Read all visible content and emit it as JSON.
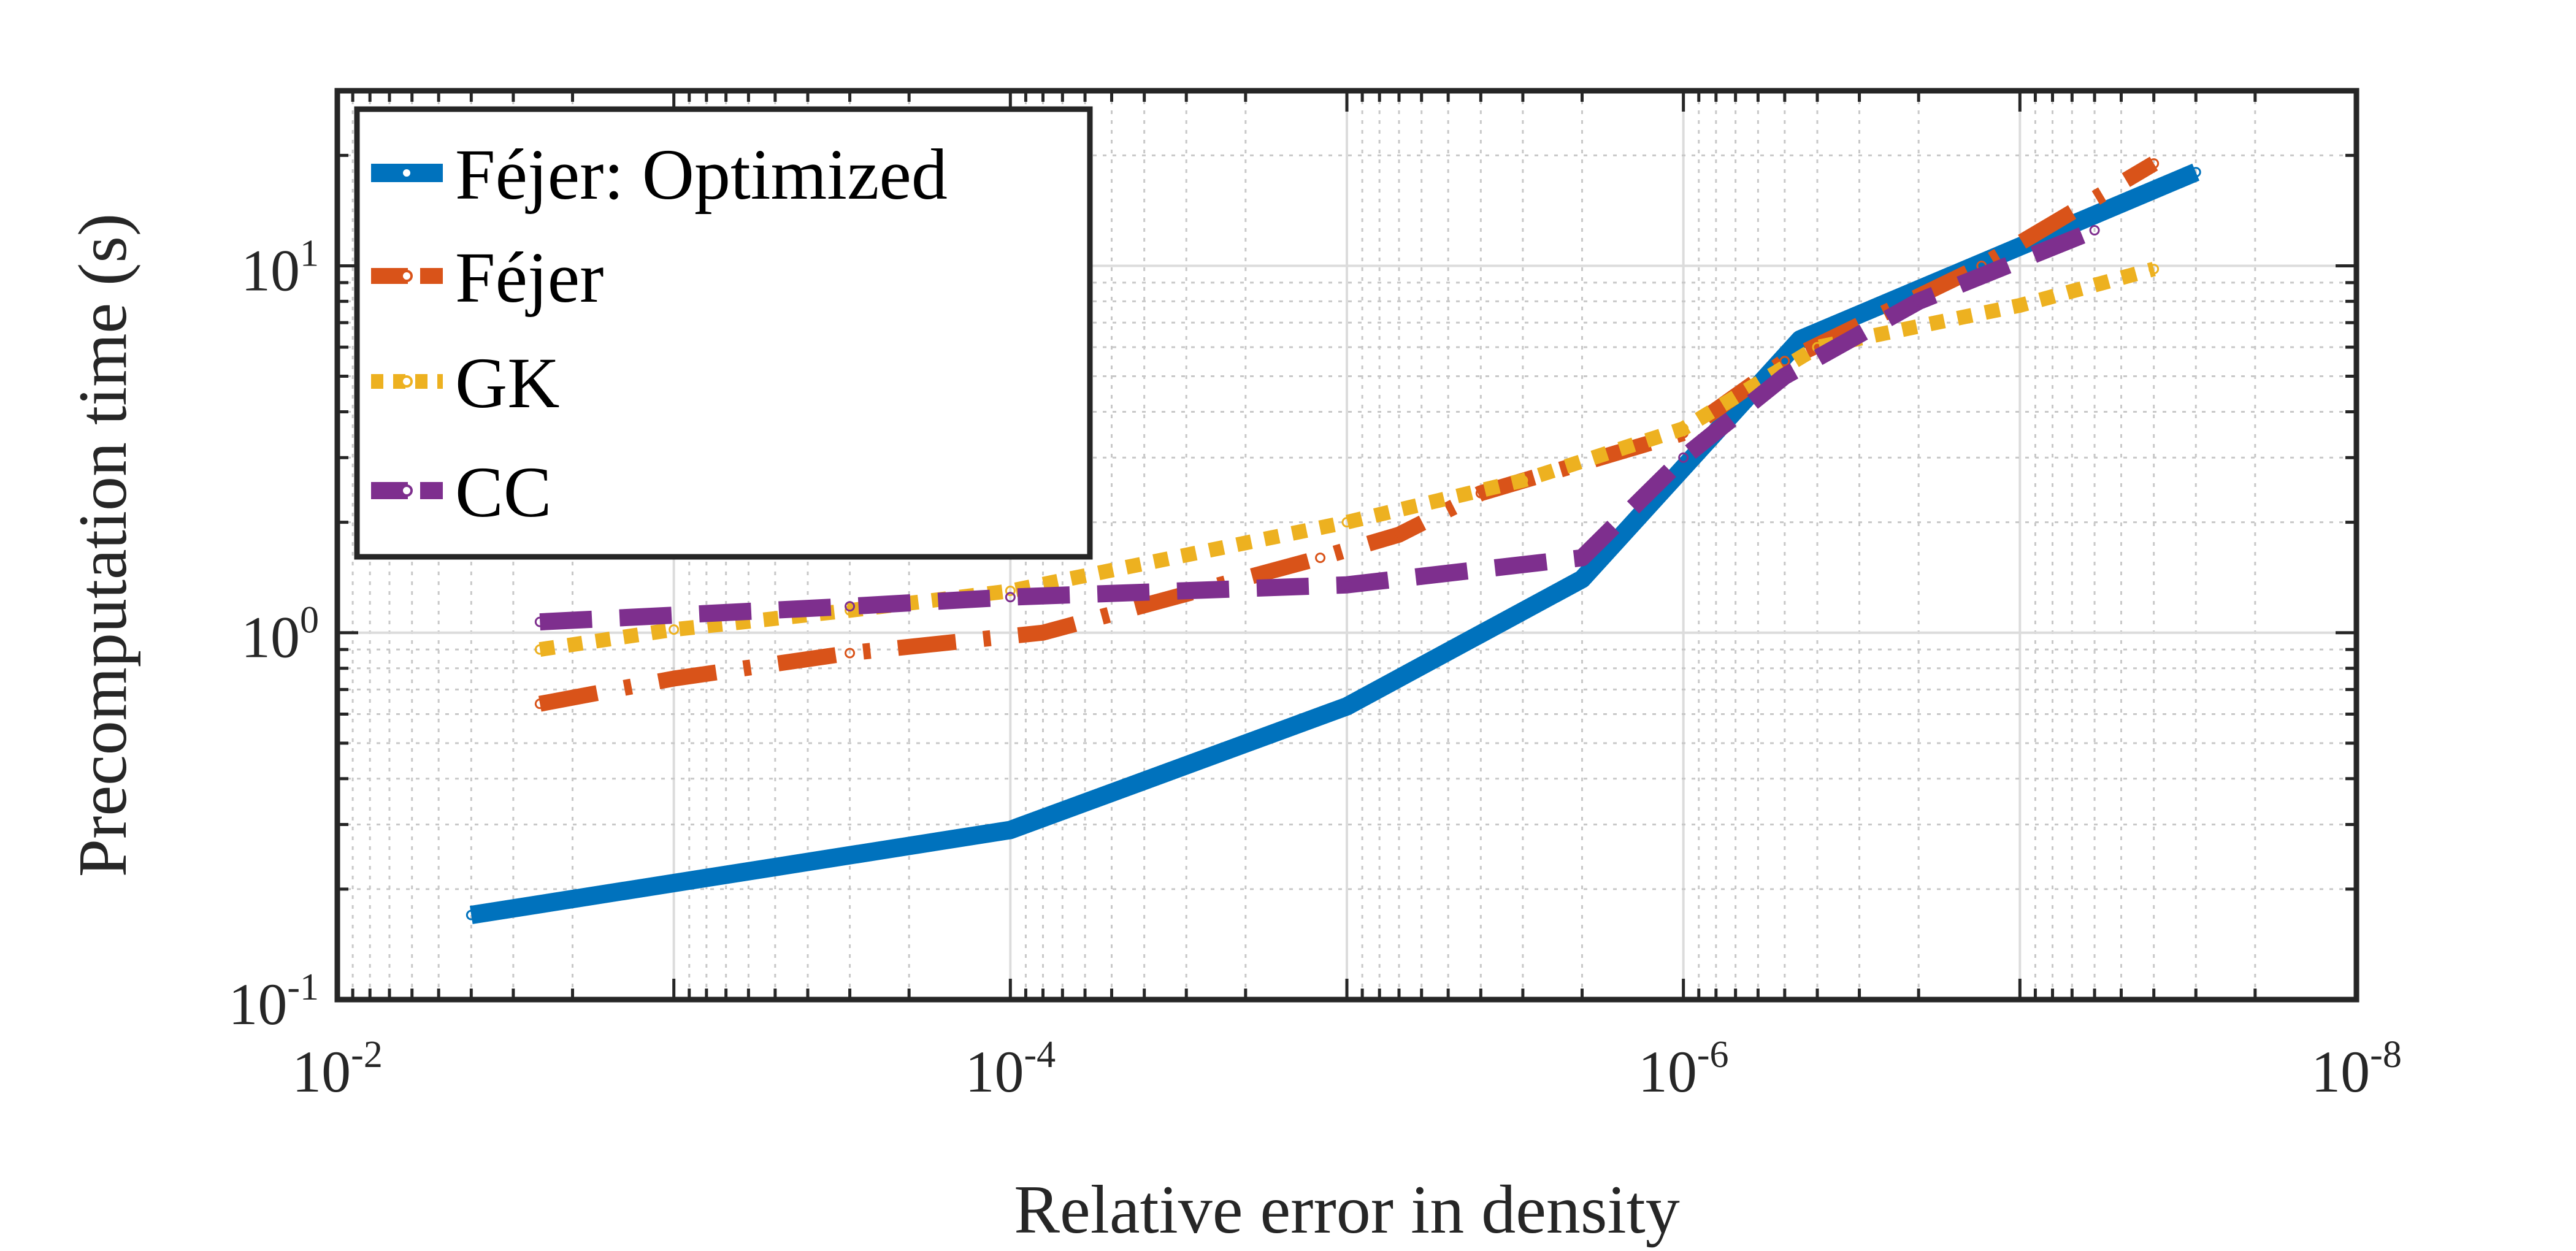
{
  "chart_data": {
    "type": "line",
    "title": "",
    "xlabel": "Relative error in density",
    "ylabel": "Precomputation time (s)",
    "xscale": "log",
    "yscale": "log",
    "x_reversed": true,
    "xlim": [
      0.01,
      1e-08
    ],
    "ylim": [
      0.1,
      30
    ],
    "grid": true,
    "legend_position": "top-left",
    "x_ticks": [
      {
        "base": "10",
        "exp": "-2",
        "value": 0.01
      },
      {
        "base": "10",
        "exp": "-4",
        "value": 0.0001
      },
      {
        "base": "10",
        "exp": "-6",
        "value": 1e-06
      },
      {
        "base": "10",
        "exp": "-8",
        "value": 1e-08
      }
    ],
    "y_ticks": [
      {
        "base": "10",
        "exp": "-1",
        "value": 0.1
      },
      {
        "base": "10",
        "exp": "0",
        "value": 1
      },
      {
        "base": "10",
        "exp": "1",
        "value": 10
      }
    ],
    "series": [
      {
        "name": "Féjer: Optimized",
        "color": "#0072BD",
        "style": "solid",
        "x": [
          0.004,
          0.0001,
          1e-05,
          2e-06,
          4.5e-07,
          3e-08
        ],
        "y": [
          0.17,
          0.29,
          0.63,
          1.4,
          6.3,
          18
        ]
      },
      {
        "name": "Féjer",
        "color": "#D95319",
        "style": "dashdot",
        "x": [
          0.0025,
          0.001,
          0.0003,
          8e-05,
          1.2e-05,
          7e-06,
          4e-06,
          1e-06,
          5e-07,
          1.3e-07,
          4e-08
        ],
        "y": [
          0.64,
          0.75,
          0.88,
          1.0,
          1.6,
          1.85,
          2.4,
          3.5,
          5.5,
          10,
          19
        ]
      },
      {
        "name": "GK",
        "color": "#EDB120",
        "style": "dotted",
        "x": [
          0.0025,
          0.001,
          0.0003,
          0.0001,
          1e-05,
          3e-06,
          1e-06,
          4e-07,
          1e-07,
          4e-08
        ],
        "y": [
          0.9,
          1.02,
          1.15,
          1.3,
          2.0,
          2.6,
          3.6,
          6.0,
          7.8,
          9.8
        ]
      },
      {
        "name": "CC",
        "color": "#7E2F8E",
        "style": "dashed",
        "x": [
          0.0025,
          0.0003,
          0.0001,
          1e-05,
          2e-06,
          1e-06,
          5e-07,
          2e-07,
          6e-08
        ],
        "y": [
          1.07,
          1.18,
          1.25,
          1.35,
          1.6,
          3.0,
          5.0,
          8.0,
          12.5
        ]
      }
    ]
  }
}
